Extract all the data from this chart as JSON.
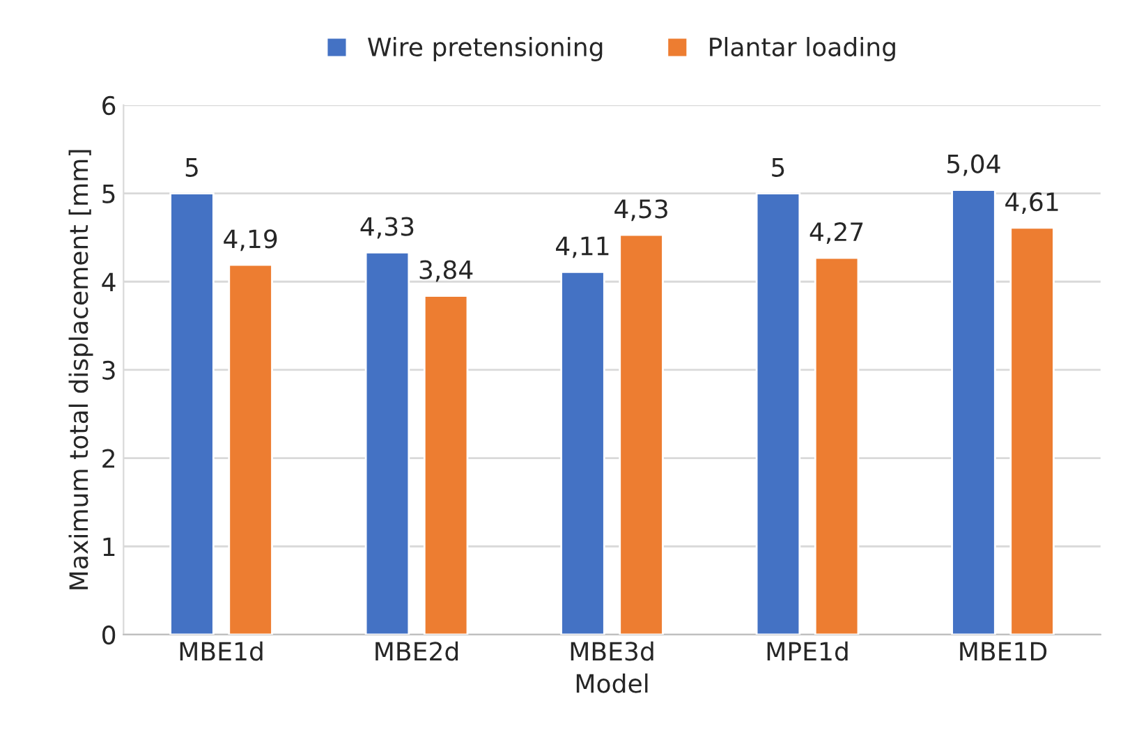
{
  "chart_data": {
    "type": "bar",
    "xlabel": "Model",
    "ylabel": "Maximum total displacement [mm]",
    "categories": [
      "MBE1d",
      "MBE2d",
      "MBE3d",
      "MPE1d",
      "MBE1D"
    ],
    "series": [
      {
        "name": "Wire pretensioning",
        "color": "#4472c4",
        "values": [
          5,
          4.33,
          4.11,
          5,
          5.04
        ],
        "value_labels": [
          "5",
          "4,33",
          "4,11",
          "5",
          "5,04"
        ]
      },
      {
        "name": "Plantar loading",
        "color": "#ed7d31",
        "values": [
          4.19,
          3.84,
          4.53,
          4.27,
          4.61
        ],
        "value_labels": [
          "4,19",
          "3,84",
          "4,53",
          "4,27",
          "4,61"
        ]
      }
    ],
    "ylim": [
      0,
      6
    ],
    "yticks": [
      0,
      1,
      2,
      3,
      4,
      5,
      6
    ],
    "grid": "y",
    "legend": "top"
  }
}
